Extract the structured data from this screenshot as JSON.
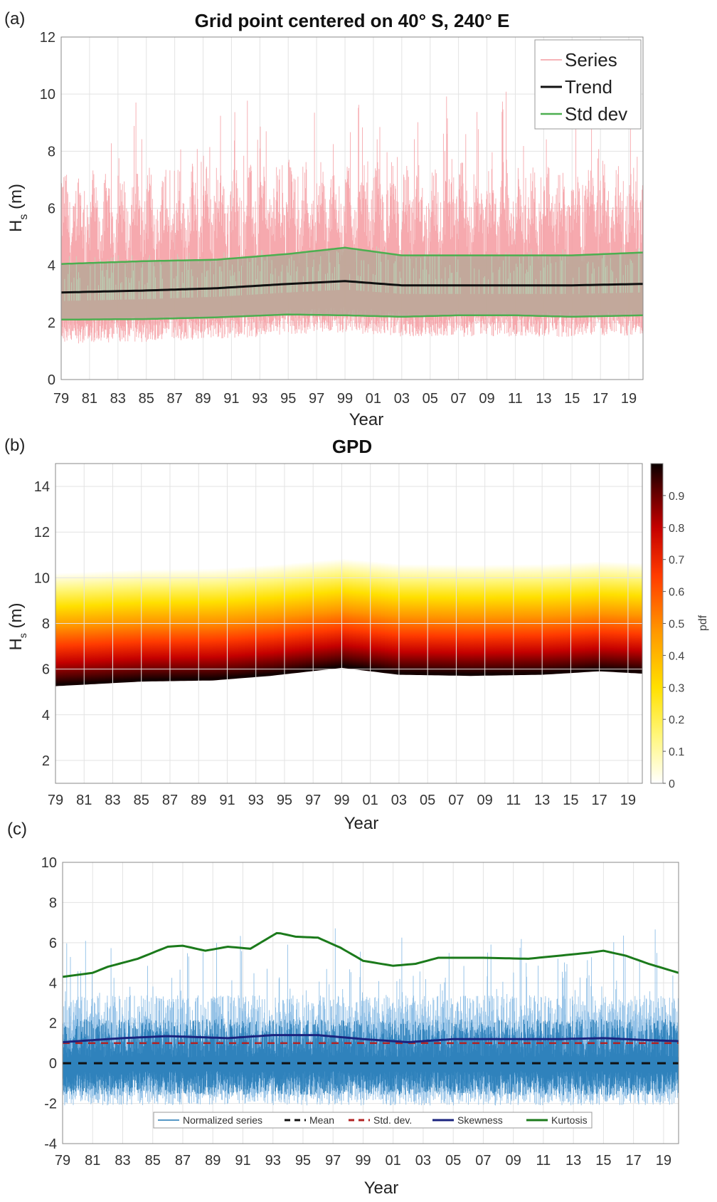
{
  "chart_data": [
    {
      "panel": "(a)",
      "type": "line",
      "title": "Grid point centered on 40° S, 240° E",
      "xlabel": "Year",
      "ylabel": "H_s (m)",
      "ylabel_main": "H",
      "ylabel_sub": "s",
      "ylabel_unit": " (m)",
      "xlim": [
        1979,
        2020
      ],
      "ylim": [
        0,
        12
      ],
      "yticks": [
        0,
        2,
        4,
        6,
        8,
        10,
        12
      ],
      "xticks": [
        "79",
        "81",
        "83",
        "85",
        "87",
        "89",
        "91",
        "93",
        "95",
        "97",
        "99",
        "01",
        "03",
        "05",
        "07",
        "09",
        "11",
        "13",
        "15",
        "17",
        "19"
      ],
      "legend": [
        "Series",
        "Trend",
        "Std dev"
      ],
      "legend_loc": "top-right",
      "colors": {
        "series": "#f49aa0",
        "band": "#b9a898",
        "trend": "#111111",
        "std": "#4caf50"
      },
      "series": [
        {
          "name": "Trend",
          "x": [
            1979,
            1985,
            1990,
            1995,
            1999,
            2003,
            2007,
            2011,
            2015,
            2020
          ],
          "values": [
            3.05,
            3.12,
            3.2,
            3.35,
            3.45,
            3.3,
            3.3,
            3.3,
            3.3,
            3.35
          ]
        },
        {
          "name": "Std dev",
          "x": [
            1979,
            1985,
            1990,
            1995,
            1999,
            2003,
            2007,
            2011,
            2015,
            2020
          ],
          "upper": [
            4.05,
            4.15,
            4.2,
            4.4,
            4.62,
            4.35,
            4.35,
            4.35,
            4.35,
            4.45
          ],
          "lower": [
            2.1,
            2.12,
            2.18,
            2.28,
            2.25,
            2.2,
            2.25,
            2.25,
            2.2,
            2.25
          ]
        }
      ],
      "grid": true
    },
    {
      "panel": "(b)",
      "type": "heatmap",
      "title": "GPD",
      "xlabel": "Year",
      "ylabel": "H_s (m)",
      "ylabel_main": "H",
      "ylabel_sub": "s",
      "ylabel_unit": " (m)",
      "xlim": [
        1979,
        2020
      ],
      "ylim": [
        1,
        15
      ],
      "yticks": [
        2,
        4,
        6,
        8,
        10,
        12,
        14
      ],
      "xticks": [
        "79",
        "81",
        "83",
        "85",
        "87",
        "89",
        "91",
        "93",
        "95",
        "97",
        "99",
        "01",
        "03",
        "05",
        "07",
        "09",
        "11",
        "13",
        "15",
        "17",
        "19"
      ],
      "colorbar_label": "pdf",
      "colorbar_ticks": [
        "0",
        "0.1",
        "0.2",
        "0.3",
        "0.4",
        "0.5",
        "0.6",
        "0.7",
        "0.8",
        "0.9"
      ],
      "colorbar_range": [
        0,
        1
      ],
      "threshold_x": [
        1979,
        1985,
        1990,
        1994,
        1999,
        2003,
        2008,
        2013,
        2017,
        2020
      ],
      "threshold_y": [
        5.3,
        5.5,
        5.55,
        5.75,
        6.1,
        5.8,
        5.75,
        5.8,
        5.95,
        5.85
      ],
      "grid": true
    },
    {
      "panel": "(c)",
      "type": "line",
      "xlabel": "Year",
      "xlim": [
        1979,
        2020
      ],
      "ylim": [
        -4,
        10
      ],
      "yticks": [
        -4,
        -2,
        0,
        2,
        4,
        6,
        8,
        10
      ],
      "xticks": [
        "79",
        "81",
        "83",
        "85",
        "87",
        "89",
        "91",
        "93",
        "95",
        "97",
        "99",
        "01",
        "03",
        "05",
        "07",
        "09",
        "11",
        "13",
        "15",
        "17",
        "19"
      ],
      "legend": [
        "Normalized series",
        "Mean",
        "Std. dev.",
        "Skewness",
        "Kurtosis"
      ],
      "legend_loc": "bottom-center",
      "colors": {
        "series": "#1f77b4",
        "mean": "#111111",
        "std": "#b22222",
        "skew": "#1a237e",
        "kurt": "#1b7a1b"
      },
      "series": [
        {
          "name": "Mean",
          "x": [
            1979,
            2020
          ],
          "values": [
            0,
            0
          ]
        },
        {
          "name": "Std. dev.",
          "x": [
            1979,
            2020
          ],
          "values": [
            1.0,
            1.0
          ]
        },
        {
          "name": "Skewness",
          "x": [
            1979,
            1983,
            1986,
            1990,
            1993,
            1996,
            1999,
            2002,
            2005,
            2009,
            2012,
            2015,
            2018,
            2020
          ],
          "values": [
            1.05,
            1.25,
            1.35,
            1.25,
            1.4,
            1.4,
            1.2,
            1.05,
            1.2,
            1.2,
            1.2,
            1.25,
            1.15,
            1.1
          ]
        },
        {
          "name": "Kurtosis",
          "x": [
            1979,
            1981,
            1982,
            1984,
            1986,
            1987,
            1988.5,
            1990,
            1991.5,
            1993.3,
            1994.5,
            1996,
            1997.5,
            1999,
            2001,
            2002.5,
            2004,
            2007,
            2010,
            2012,
            2014,
            2015,
            2016.5,
            2018,
            2020
          ],
          "values": [
            4.3,
            4.5,
            4.8,
            5.2,
            5.8,
            5.85,
            5.6,
            5.8,
            5.7,
            6.5,
            6.3,
            6.25,
            5.75,
            5.1,
            4.85,
            4.95,
            5.25,
            5.25,
            5.2,
            5.35,
            5.5,
            5.6,
            5.35,
            4.95,
            4.5
          ]
        }
      ],
      "grid": true
    }
  ],
  "labels": {
    "a": "(a)",
    "b": "(b)",
    "c": "(c)",
    "a_xlabel": "Year",
    "b_xlabel": "Year",
    "c_xlabel": "Year",
    "a_title": "Grid point centered on 40° S, 240° E",
    "b_title": "GPD",
    "b_colorbar": "pdf"
  }
}
